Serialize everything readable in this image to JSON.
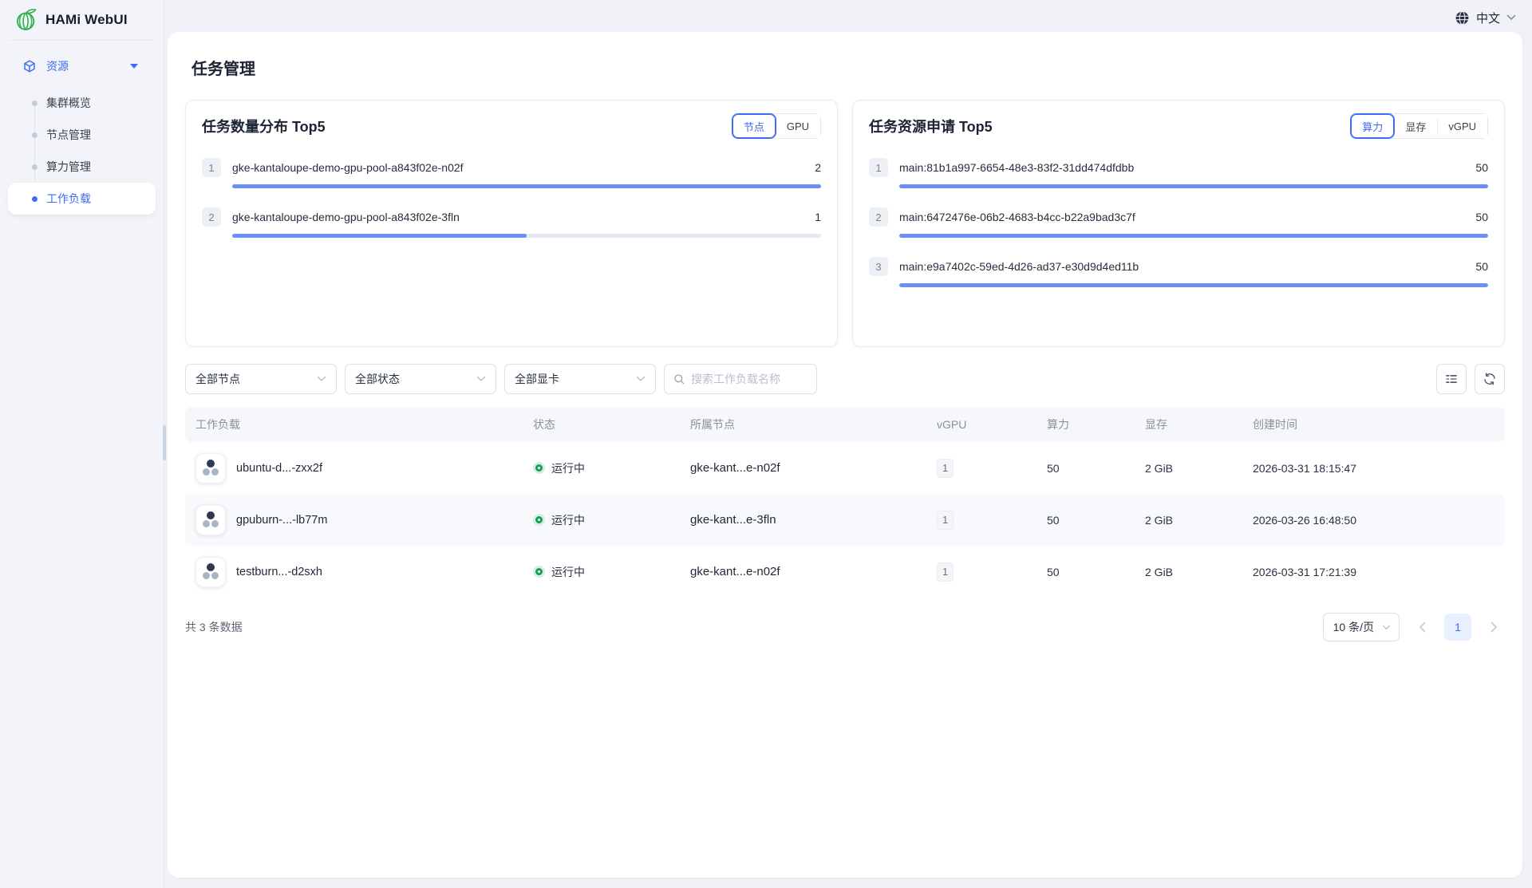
{
  "app": {
    "title": "HAMi WebUI"
  },
  "topbar": {
    "language": "中文"
  },
  "sidebar": {
    "section": {
      "label": "资源"
    },
    "items": [
      {
        "label": "集群概览",
        "active": false
      },
      {
        "label": "节点管理",
        "active": false
      },
      {
        "label": "算力管理",
        "active": false
      },
      {
        "label": "工作负载",
        "active": true
      }
    ]
  },
  "page": {
    "title": "任务管理"
  },
  "chart_data": [
    {
      "type": "bar",
      "title": "任务数量分布 Top5",
      "tabs": [
        {
          "label": "节点",
          "active": true
        },
        {
          "label": "GPU",
          "active": false
        }
      ],
      "rows": [
        {
          "rank": "1",
          "label": "gke-kantaloupe-demo-gpu-pool-a843f02e-n02f",
          "value": "2",
          "pct": 100
        },
        {
          "rank": "2",
          "label": "gke-kantaloupe-demo-gpu-pool-a843f02e-3fln",
          "value": "1",
          "pct": 50
        }
      ]
    },
    {
      "type": "bar",
      "title": "任务资源申请 Top5",
      "tabs": [
        {
          "label": "算力",
          "active": true
        },
        {
          "label": "显存",
          "active": false
        },
        {
          "label": "vGPU",
          "active": false
        }
      ],
      "rows": [
        {
          "rank": "1",
          "label": "main:81b1a997-6654-48e3-83f2-31dd474dfdbb",
          "value": "50",
          "pct": 100
        },
        {
          "rank": "2",
          "label": "main:6472476e-06b2-4683-b4cc-b22a9bad3c7f",
          "value": "50",
          "pct": 100
        },
        {
          "rank": "3",
          "label": "main:e9a7402c-59ed-4d26-ad37-e30d9d4ed11b",
          "value": "50",
          "pct": 100
        }
      ]
    }
  ],
  "filters": {
    "node": "全部节点",
    "status": "全部状态",
    "gpu": "全部显卡",
    "search_placeholder": "搜索工作负载名称"
  },
  "table": {
    "columns": [
      "工作负载",
      "状态",
      "所属节点",
      "vGPU",
      "算力",
      "显存",
      "创建时间"
    ],
    "rows": [
      {
        "name": "ubuntu-d...-zxx2f",
        "status": "运行中",
        "node": "gke-kant...e-n02f",
        "vgpu": "1",
        "compute": "50",
        "memory": "2 GiB",
        "created": "2026-03-31 18:15:47"
      },
      {
        "name": "gpuburn-...-lb77m",
        "status": "运行中",
        "node": "gke-kant...e-3fln",
        "vgpu": "1",
        "compute": "50",
        "memory": "2 GiB",
        "created": "2026-03-26 16:48:50"
      },
      {
        "name": "testburn...-d2sxh",
        "status": "运行中",
        "node": "gke-kant...e-n02f",
        "vgpu": "1",
        "compute": "50",
        "memory": "2 GiB",
        "created": "2026-03-31 17:21:39"
      }
    ]
  },
  "pagination": {
    "total": "共 3 条数据",
    "page_size": "10 条/页",
    "page": "1"
  },
  "colors": {
    "accent": "#3d6bf5",
    "bar_fill": "#6b8ef8",
    "bar_track": "#e5e8ee",
    "status_green": "#18a058",
    "page_bg": "#f0f2f7",
    "logo_green": "#2eb24f"
  }
}
